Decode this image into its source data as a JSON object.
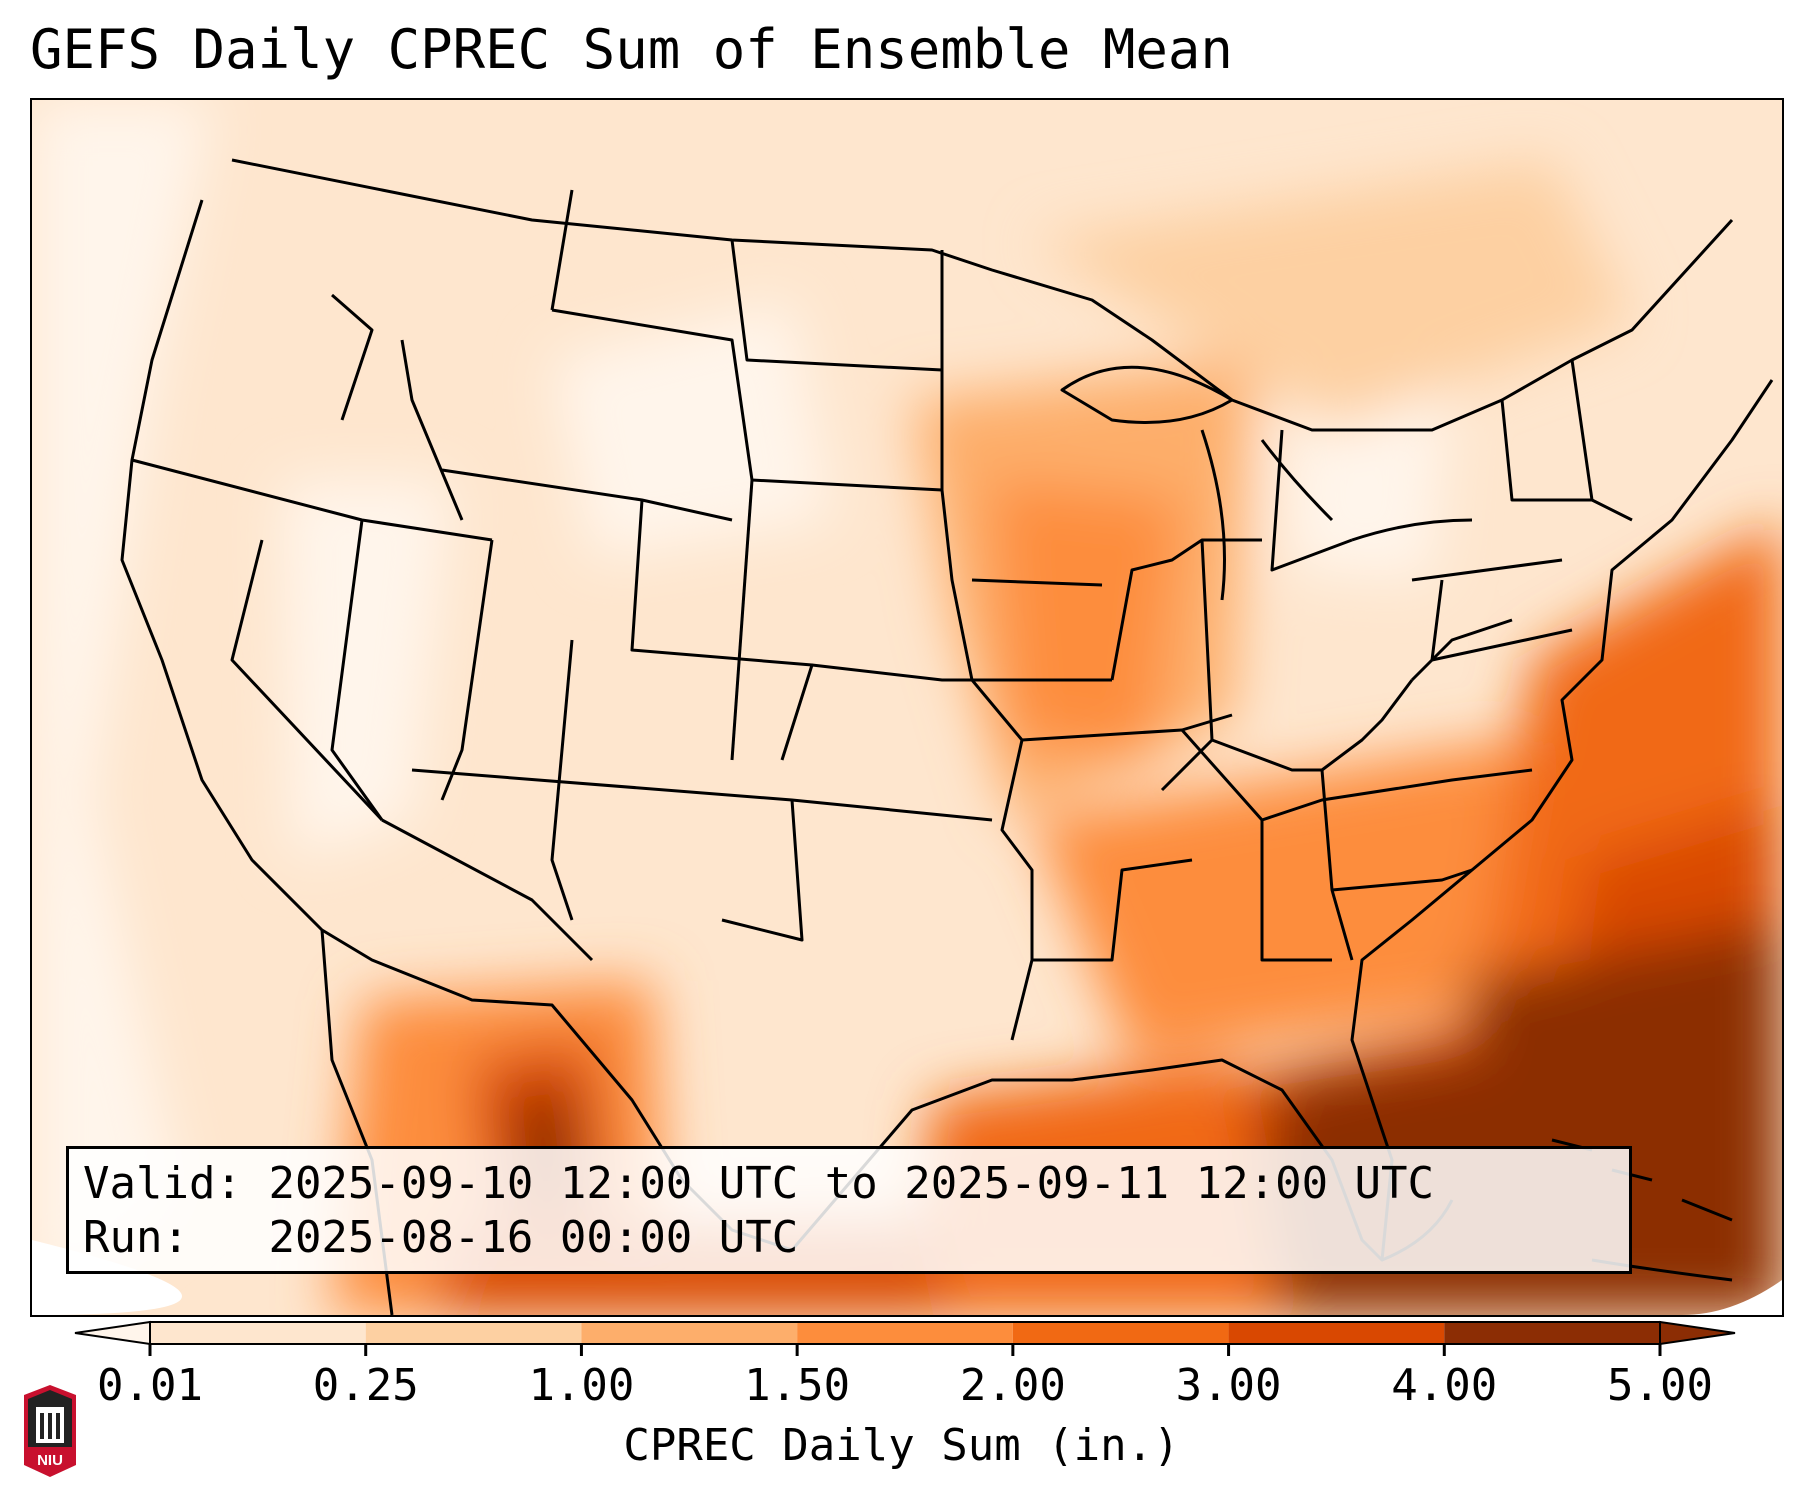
{
  "title": "GEFS Daily CPREC Sum of Ensemble Mean",
  "info": {
    "valid_label": "Valid:",
    "valid_value": "2025-09-10 12:00 UTC to 2025-09-11 12:00 UTC",
    "run_label": "Run:",
    "run_value": "2025-08-16 00:00 UTC"
  },
  "colorbar": {
    "label": "CPREC Daily Sum (in.)",
    "ticks": [
      "0.01",
      "0.25",
      "1.00",
      "1.50",
      "2.00",
      "3.00",
      "4.00",
      "5.00"
    ],
    "colors": [
      "#fff5eb",
      "#fee6ce",
      "#fdd0a2",
      "#fdae6b",
      "#fd8d3c",
      "#f16913",
      "#d94801",
      "#8c2d04"
    ],
    "extend": "both"
  },
  "logo": {
    "text": "NIU"
  }
}
